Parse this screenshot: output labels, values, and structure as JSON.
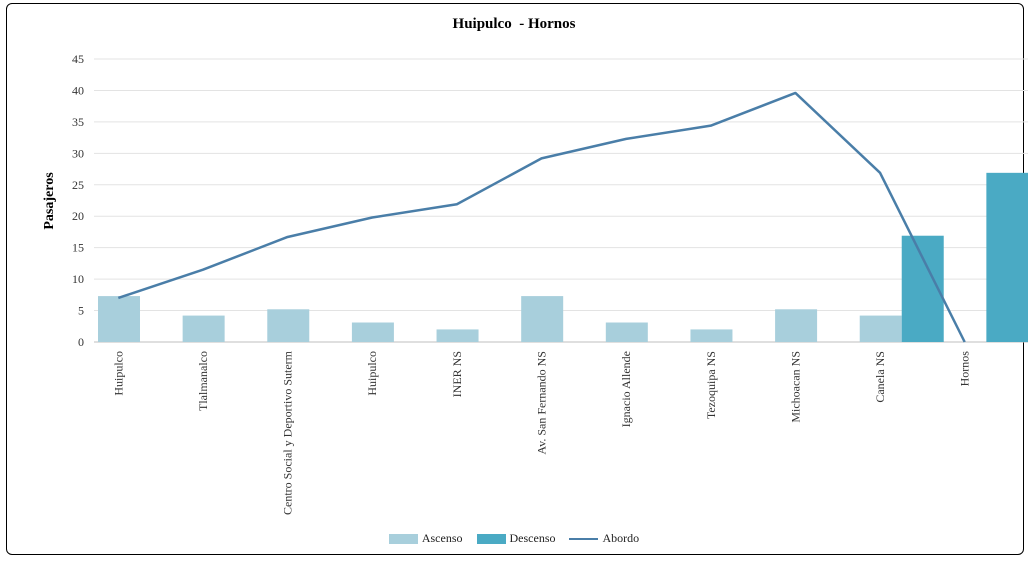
{
  "chart_data": {
    "type": "bar",
    "title": "Huipulco  - Hornos",
    "ylabel": "Pasajeros",
    "xlabel": "",
    "ylim": [
      0,
      45
    ],
    "yticks": [
      0,
      5,
      10,
      15,
      20,
      25,
      30,
      35,
      40,
      45
    ],
    "grid": true,
    "legend_position": "bottom",
    "categories": [
      "Huipulco",
      "Tlalmanalco",
      "Centro Social y Deportivo Suterm",
      "Huipulco",
      "INER NS",
      "Av. San Fernando NS",
      "Ignacio Allende",
      "Tezoquipa NS",
      "Michoacan NS",
      "Canela NS",
      "Hornos"
    ],
    "series": [
      {
        "name": "Ascenso",
        "kind": "bar",
        "color": "#a8cfdc",
        "values": [
          7.3,
          4.2,
          5.2,
          3.1,
          2.0,
          7.3,
          3.1,
          2.0,
          5.2,
          4.2,
          0
        ]
      },
      {
        "name": "Descenso",
        "kind": "bar",
        "color": "#4aaac4",
        "values": [
          0,
          0,
          0,
          0,
          0,
          0,
          0,
          0,
          0,
          16.9,
          26.9
        ]
      },
      {
        "name": "Abordo",
        "kind": "line",
        "color": "#4a7ea8",
        "values": [
          7.0,
          11.5,
          16.7,
          19.8,
          21.9,
          29.2,
          32.3,
          34.4,
          39.6,
          26.9,
          0
        ]
      }
    ]
  }
}
